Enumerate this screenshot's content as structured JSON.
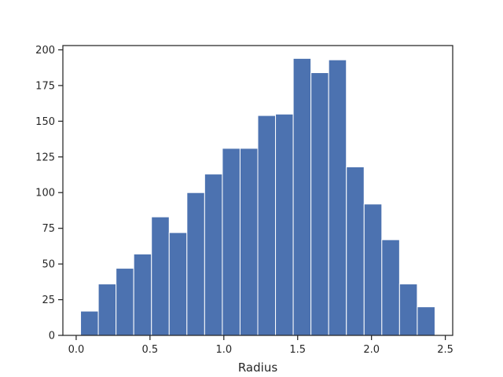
{
  "chart_data": {
    "type": "bar",
    "title": "",
    "xlabel": "Radius",
    "ylabel": "",
    "xlim": [
      -0.09,
      2.55
    ],
    "ylim": [
      0,
      203
    ],
    "bin_edges": [
      0.03,
      0.15,
      0.27,
      0.39,
      0.51,
      0.63,
      0.75,
      0.87,
      0.99,
      1.11,
      1.23,
      1.35,
      1.47,
      1.59,
      1.71,
      1.83,
      1.95,
      2.07,
      2.19,
      2.31,
      2.43
    ],
    "values": [
      17,
      36,
      47,
      57,
      83,
      72,
      100,
      113,
      131,
      131,
      154,
      155,
      194,
      184,
      193,
      118,
      92,
      67,
      36,
      20
    ],
    "x_ticks": [
      {
        "value": 0.0,
        "label": "0.0"
      },
      {
        "value": 0.5,
        "label": "0.5"
      },
      {
        "value": 1.0,
        "label": "1.0"
      },
      {
        "value": 1.5,
        "label": "1.5"
      },
      {
        "value": 2.0,
        "label": "2.0"
      },
      {
        "value": 2.5,
        "label": "2.5"
      }
    ],
    "y_ticks": [
      {
        "value": 0,
        "label": "0"
      },
      {
        "value": 25,
        "label": "25"
      },
      {
        "value": 50,
        "label": "50"
      },
      {
        "value": 75,
        "label": "75"
      },
      {
        "value": 100,
        "label": "100"
      },
      {
        "value": 125,
        "label": "125"
      },
      {
        "value": 150,
        "label": "150"
      },
      {
        "value": 175,
        "label": "175"
      },
      {
        "value": 200,
        "label": "200"
      }
    ],
    "grid": false,
    "bar_color": "#4c72b0",
    "bar_edge_color": "#ffffff"
  }
}
